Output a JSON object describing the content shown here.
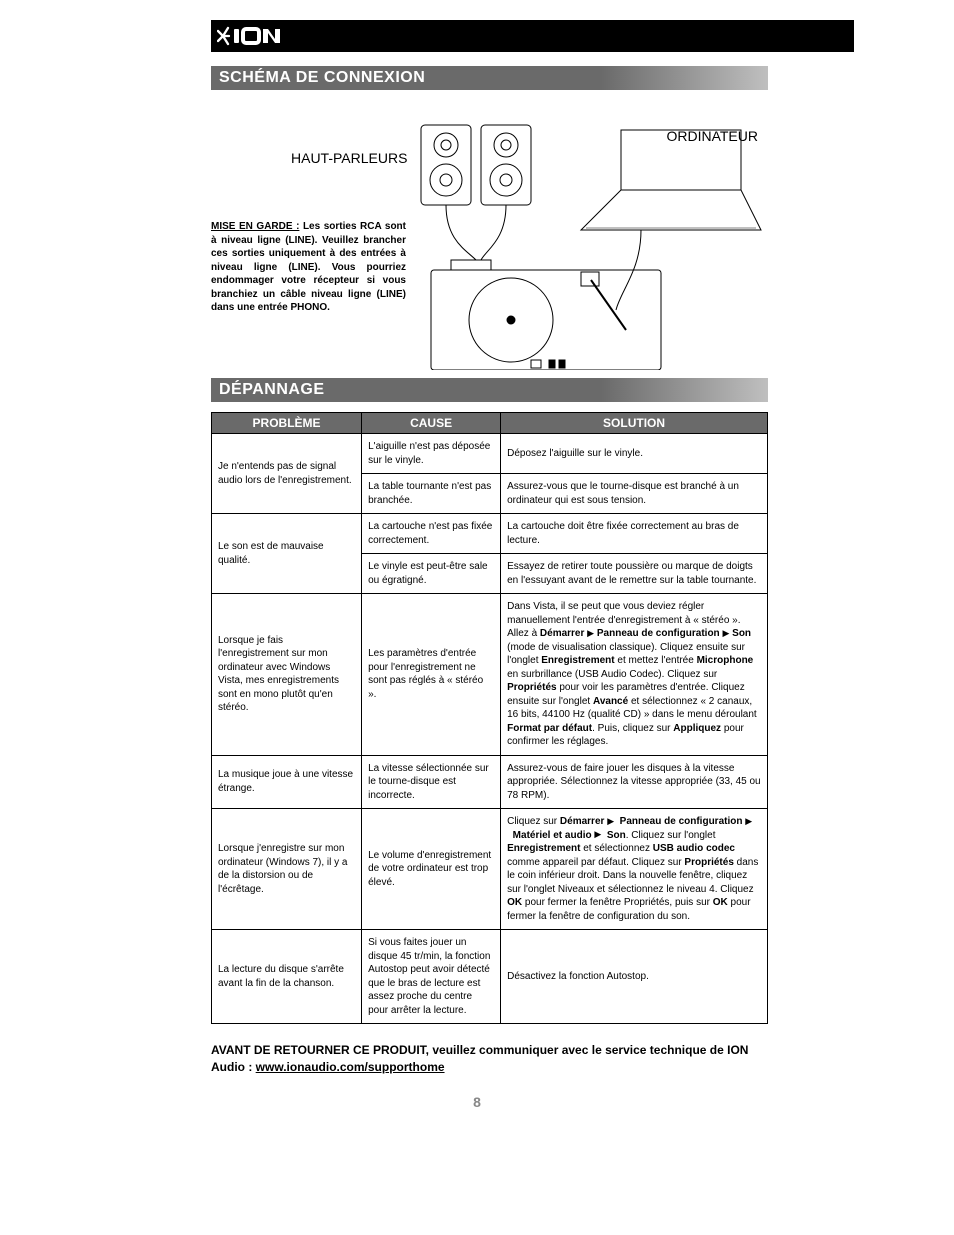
{
  "brand": "ION",
  "section1_title": "SCHÉMA DE CONNEXION",
  "labels": {
    "haut_parleurs": "HAUT-PARLEURS",
    "ordinateur": "ORDINATEUR"
  },
  "warning": {
    "prefix": "MISE EN GARDE :",
    "body": " Les sorties RCA sont à niveau ligne (LINE). Veuillez brancher ces sorties uniquement à des entrées à niveau ligne (LINE). Vous pourriez endommager votre récepteur si vous branchiez un câble niveau ligne (LINE) dans une entrée PHONO."
  },
  "section2_title": "DÉPANNAGE",
  "table": {
    "headers": {
      "probleme": "PROBLÈME",
      "cause": "CAUSE",
      "solution": "SOLUTION"
    },
    "rows": [
      {
        "probleme": "Je n'entends pas de signal audio lors de l'enregistrement.",
        "subrows": [
          {
            "cause": "L'aiguille n'est pas déposée sur le vinyle.",
            "solution": "Déposez l'aiguille sur le vinyle."
          },
          {
            "cause": "La table tournante n'est pas branchée.",
            "solution": "Assurez-vous que le tourne-disque est branché à un ordinateur qui est sous tension."
          }
        ]
      },
      {
        "probleme": "Le son est de mauvaise qualité.",
        "subrows": [
          {
            "cause": "La cartouche n'est pas fixée correctement.",
            "solution": "La cartouche doit être fixée correctement au bras de lecture."
          },
          {
            "cause": "Le vinyle est peut-être sale ou égratigné.",
            "solution": "Essayez de retirer toute poussière ou marque de doigts en l'essuyant avant de le remettre sur la table tournante."
          }
        ]
      },
      {
        "probleme": "Lorsque je fais l'enregistrement sur mon ordinateur avec Windows Vista, mes enregistrements sont en mono plutôt qu'en stéréo.",
        "subrows": [
          {
            "cause": "Les paramètres d'entrée pour l'enregistrement ne sont pas réglés à « stéréo ».",
            "solution_html": "Dans Vista, il se peut que vous deviez régler manuellement l'entrée d'enregistrement à « stéréo ». Allez à <b>Démarrer</b> <span class='tri'>▶</span> <b>Panneau de configuration</b> <span class='tri'>▶</span> <b>Son</b> (mode de visualisation classique). Cliquez ensuite sur l'onglet <b>Enregistrement</b> et mettez l'entrée <b>Microphone</b> en surbrillance (USB Audio Codec). Cliquez sur <b>Propriétés</b> pour voir les paramètres d'entrée. Cliquez ensuite sur l'onglet <b>Avancé</b> et sélectionnez « 2 canaux, 16 bits, 44100 Hz (qualité CD) » dans le menu déroulant <b>Format par défaut</b>. Puis, cliquez sur <b>Appliquez</b> pour confirmer les réglages."
          }
        ]
      },
      {
        "probleme": "La musique joue à une vitesse étrange.",
        "subrows": [
          {
            "cause": "La vitesse sélectionnée sur le tourne-disque est incorrecte.",
            "solution": "Assurez-vous de faire jouer les disques à la vitesse appropriée. Sélectionnez la vitesse appropriée (33, 45 ou 78 RPM)."
          }
        ]
      },
      {
        "probleme": "Lorsque j'enregistre sur mon ordinateur (Windows 7), il y a de la distorsion ou de l'écrêtage.",
        "subrows": [
          {
            "cause": "Le volume d'enregistrement de votre ordinateur est trop élevé.",
            "solution_html": "Cliquez sur <b>Démarrer</b> <span class='tri'>▶</span>&nbsp;&nbsp;<b>Panneau de configuration</b> <span class='tri'>▶</span>&nbsp;&nbsp;<b>Matériel et audio</b> <span class='tri'>▶</span>&nbsp;&nbsp;<b>Son</b>. Cliquez sur l'onglet <b>Enregistrement</b> et sélectionnez <b>USB audio codec</b> comme appareil par défaut. Cliquez sur <b>Propriétés</b> dans le coin inférieur droit. Dans la nouvelle fenêtre, cliquez sur l'onglet Niveaux et sélectionnez le niveau 4. Cliquez <b>OK</b> pour fermer la fenêtre Propriétés, puis sur <b>OK</b> pour fermer la fenêtre de configuration du son."
          }
        ]
      },
      {
        "probleme": "La lecture du disque s'arrête avant la fin de la chanson.",
        "subrows": [
          {
            "cause": "Si vous faites jouer un disque 45 tr/min, la fonction Autostop peut avoir détecté que le bras de lecture est assez proche du centre pour arrêter la lecture.",
            "solution": "Désactivez la fonction Autostop."
          }
        ]
      }
    ]
  },
  "footer": {
    "text_before": "AVANT DE RETOURNER CE PRODUIT, veuillez communiquer avec le service technique de ION Audio : ",
    "link": "www.ionaudio.com/supporthome"
  },
  "page_number": "8"
}
